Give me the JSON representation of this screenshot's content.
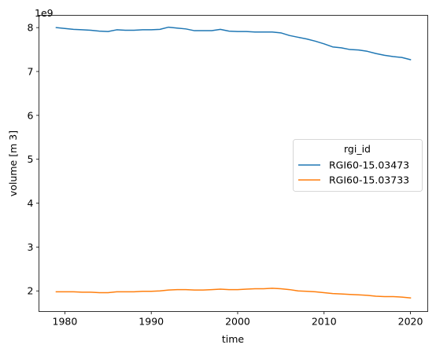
{
  "chart_data": {
    "type": "line",
    "xlabel": "time",
    "ylabel": "volume [m 3]",
    "offset_text": "1e9",
    "xlim": [
      1977,
      2022
    ],
    "ylim": [
      1.53,
      8.28
    ],
    "x_ticks": [
      1980,
      1990,
      2000,
      2010,
      2020
    ],
    "y_ticks": [
      2,
      3,
      4,
      5,
      6,
      7,
      8
    ],
    "legend": {
      "title": "rgi_id",
      "placement": "center-right"
    },
    "x": [
      1979,
      1980,
      1981,
      1982,
      1983,
      1984,
      1985,
      1986,
      1987,
      1988,
      1989,
      1990,
      1991,
      1992,
      1993,
      1994,
      1995,
      1996,
      1997,
      1998,
      1999,
      2000,
      2001,
      2002,
      2003,
      2004,
      2005,
      2006,
      2007,
      2008,
      2009,
      2010,
      2011,
      2012,
      2013,
      2014,
      2015,
      2016,
      2017,
      2018,
      2019,
      2020
    ],
    "series": [
      {
        "name": "RGI60-15.03473",
        "color": "#1f77b4",
        "values": [
          8.0,
          7.98,
          7.96,
          7.95,
          7.94,
          7.92,
          7.91,
          7.95,
          7.94,
          7.94,
          7.95,
          7.95,
          7.96,
          8.01,
          7.99,
          7.97,
          7.93,
          7.93,
          7.93,
          7.96,
          7.92,
          7.91,
          7.91,
          7.9,
          7.9,
          7.9,
          7.88,
          7.82,
          7.78,
          7.74,
          7.69,
          7.63,
          7.56,
          7.54,
          7.5,
          7.49,
          7.46,
          7.41,
          7.37,
          7.34,
          7.32,
          7.27
        ]
      },
      {
        "name": "RGI60-15.03733",
        "color": "#ff7f0e",
        "values": [
          1.98,
          1.98,
          1.98,
          1.97,
          1.97,
          1.96,
          1.96,
          1.98,
          1.98,
          1.98,
          1.99,
          1.99,
          2.0,
          2.02,
          2.03,
          2.03,
          2.02,
          2.02,
          2.03,
          2.04,
          2.03,
          2.03,
          2.04,
          2.05,
          2.05,
          2.06,
          2.05,
          2.03,
          2.0,
          1.99,
          1.98,
          1.96,
          1.94,
          1.93,
          1.92,
          1.91,
          1.9,
          1.88,
          1.87,
          1.87,
          1.86,
          1.84
        ]
      }
    ]
  }
}
